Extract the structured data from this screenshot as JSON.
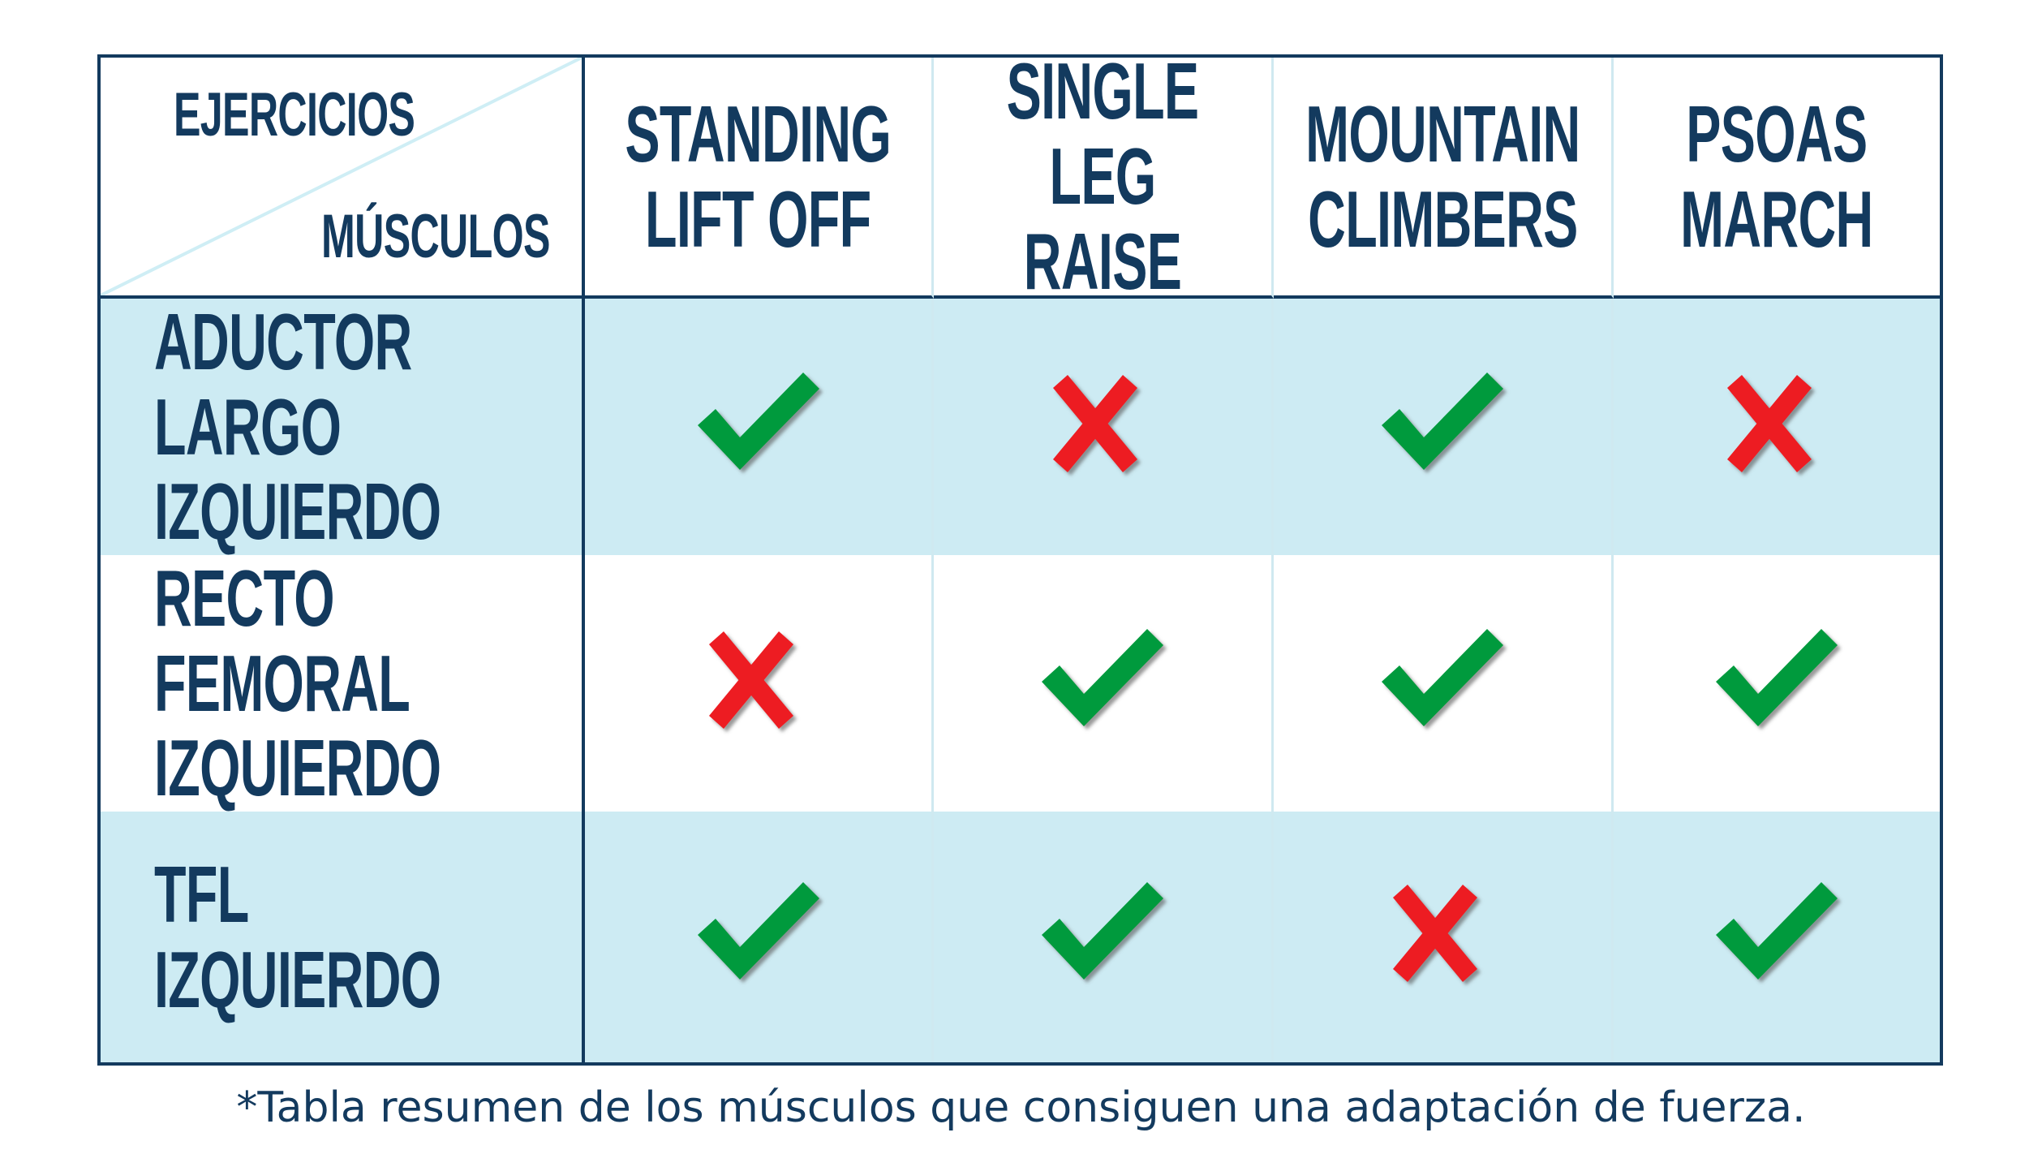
{
  "header": {
    "corner_top": "EJERCICIOS",
    "corner_bottom": "MÚSCULOS",
    "exercises": [
      "STANDING\nLIFT OFF",
      "SINGLE LEG\nRAISE",
      "MOUNTAIN\nCLIMBERS",
      "PSOAS\nMARCH"
    ]
  },
  "rows": [
    {
      "muscle": "ADUCTOR LARGO\nIZQUIERDO",
      "marks": [
        "check",
        "cross",
        "check",
        "cross"
      ]
    },
    {
      "muscle": "RECTO FEMORAL\nIZQUIERDO",
      "marks": [
        "cross",
        "check",
        "check",
        "check"
      ]
    },
    {
      "muscle": "TFL IZQUIERDO",
      "marks": [
        "check",
        "check",
        "cross",
        "check"
      ]
    }
  ],
  "footer": "*Tabla resumen de los músculos que consiguen una adaptación de fuerza.",
  "colors": {
    "navy": "#133a5e",
    "shade": "#cdebf3",
    "check": "#009a3e",
    "cross": "#ed1c24"
  }
}
